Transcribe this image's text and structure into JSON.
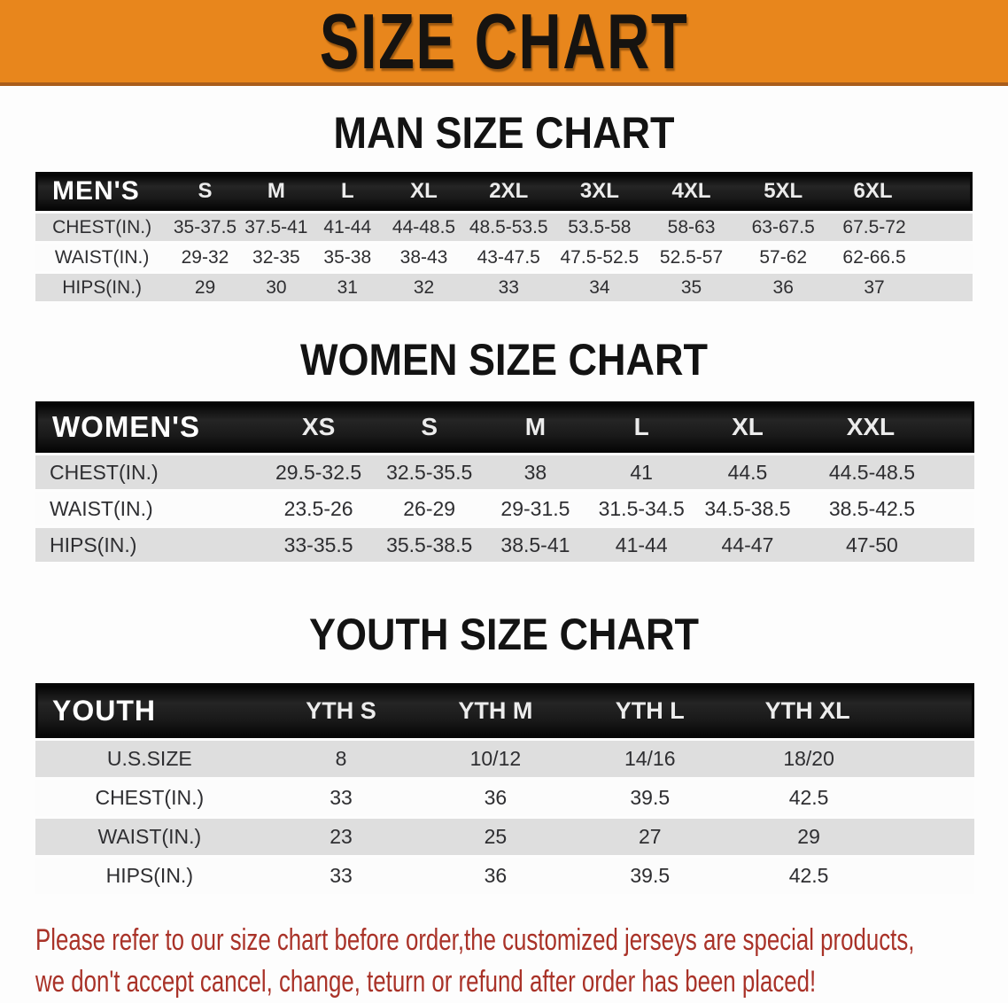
{
  "banner": {
    "title": "SIZE CHART",
    "bg_color": "#e8861c",
    "text_color": "#161310"
  },
  "sections": [
    {
      "title": "MAN SIZE CHART",
      "header_label": "MEN'S",
      "columns": [
        "S",
        "M",
        "L",
        "XL",
        "2XL",
        "3XL",
        "4XL",
        "5XL",
        "6XL"
      ],
      "rows": [
        {
          "label": "CHEST(IN.)",
          "values": [
            "35-37.5",
            "37.5-41",
            "41-44",
            "44-48.5",
            "48.5-53.5",
            "53.5-58",
            "58-63",
            "63-67.5",
            "67.5-72"
          ]
        },
        {
          "label": "WAIST(IN.)",
          "values": [
            "29-32",
            "32-35",
            "35-38",
            "38-43",
            "43-47.5",
            "47.5-52.5",
            "52.5-57",
            "57-62",
            "62-66.5"
          ]
        },
        {
          "label": "HIPS(IN.)",
          "values": [
            "29",
            "30",
            "31",
            "32",
            "33",
            "34",
            "35",
            "36",
            "37"
          ]
        }
      ]
    },
    {
      "title": "WOMEN SIZE CHART",
      "header_label": "WOMEN'S",
      "columns": [
        "XS",
        "S",
        "M",
        "L",
        "XL",
        "XXL"
      ],
      "rows": [
        {
          "label": "CHEST(IN.)",
          "values": [
            "29.5-32.5",
            "32.5-35.5",
            "38",
            "41",
            "44.5",
            "44.5-48.5"
          ]
        },
        {
          "label": "WAIST(IN.)",
          "values": [
            "23.5-26",
            "26-29",
            "29-31.5",
            "31.5-34.5",
            "34.5-38.5",
            "38.5-42.5"
          ]
        },
        {
          "label": "HIPS(IN.)",
          "values": [
            "33-35.5",
            "35.5-38.5",
            "38.5-41",
            "41-44",
            "44-47",
            "47-50"
          ]
        }
      ]
    },
    {
      "title": "YOUTH SIZE CHART",
      "header_label": "YOUTH",
      "columns": [
        "YTH S",
        "YTH M",
        "YTH L",
        "YTH XL"
      ],
      "rows": [
        {
          "label": "U.S.SIZE",
          "values": [
            "8",
            "10/12",
            "14/16",
            "18/20"
          ]
        },
        {
          "label": "CHEST(IN.)",
          "values": [
            "33",
            "36",
            "39.5",
            "42.5"
          ]
        },
        {
          "label": "WAIST(IN.)",
          "values": [
            "23",
            "25",
            "27",
            "29"
          ]
        },
        {
          "label": "HIPS(IN.)",
          "values": [
            "33",
            "36",
            "39.5",
            "42.5"
          ]
        }
      ]
    }
  ],
  "disclaimer": {
    "color": "#a93228",
    "lines": [
      "Please refer to our size chart before order,the customized jerseys are special products,",
      "we don't accept cancel, change, teturn or refund after order has been placed!"
    ]
  }
}
